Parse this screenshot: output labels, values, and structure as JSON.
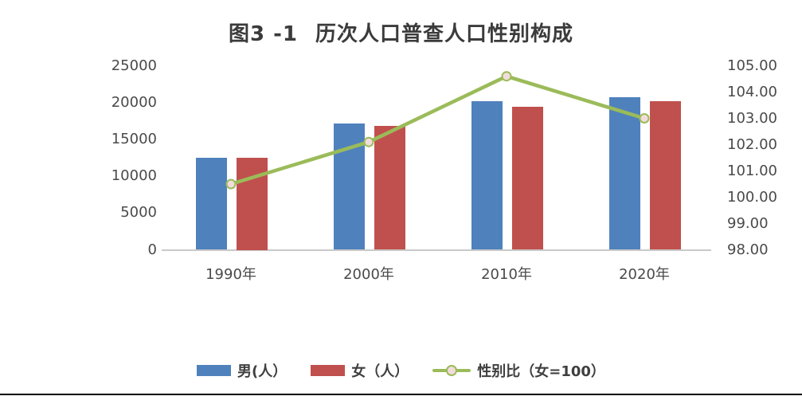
{
  "page": {
    "background": "#ffffff",
    "bottom_rule_color": "#000000"
  },
  "chart_data": {
    "type": "bar",
    "subtype": "grouped-bar-with-line-overlay",
    "title": {
      "prefix": "图3 -1",
      "text": "历次人口普查人口性别构成",
      "full": "图3 -1　历次人口普查人口性别构成"
    },
    "categories": [
      "1990年",
      "2000年",
      "2010年",
      "2020年"
    ],
    "series": [
      {
        "name": "男(人）",
        "type": "bar",
        "axis": "left",
        "color": "#4f81bd",
        "values": [
          12550,
          17100,
          20200,
          20700
        ]
      },
      {
        "name": "女（人）",
        "type": "bar",
        "axis": "left",
        "color": "#c0504d",
        "values": [
          12500,
          16800,
          19400,
          20150
        ]
      },
      {
        "name": "性别比（女=100）",
        "type": "line",
        "axis": "right",
        "color": "#9bbb59",
        "marker_fill": "#f2dcdb",
        "values": [
          100.5,
          102.1,
          104.6,
          103.0
        ]
      }
    ],
    "left_axis": {
      "min": 0,
      "max": 25000,
      "step": 5000,
      "ticks": [
        "0",
        "5000",
        "10000",
        "15000",
        "20000",
        "25000"
      ]
    },
    "right_axis": {
      "min": 98,
      "max": 105,
      "step": 1,
      "ticks": [
        "98.00",
        "99.00",
        "100.00",
        "101.00",
        "102.00",
        "103.00",
        "104.00",
        "105.00"
      ]
    },
    "grid": false,
    "legend_position": "bottom",
    "xlabel": "",
    "ylabel_left": "",
    "ylabel_right": ""
  },
  "legend": {
    "items": [
      {
        "label": "男(人）",
        "swatch": "bar",
        "color": "#4f81bd"
      },
      {
        "label": "女（人）",
        "swatch": "bar",
        "color": "#c0504d"
      },
      {
        "label": "性别比（女=100）",
        "swatch": "line-marker",
        "color": "#9bbb59",
        "marker_fill": "#f2dcdb"
      }
    ]
  }
}
